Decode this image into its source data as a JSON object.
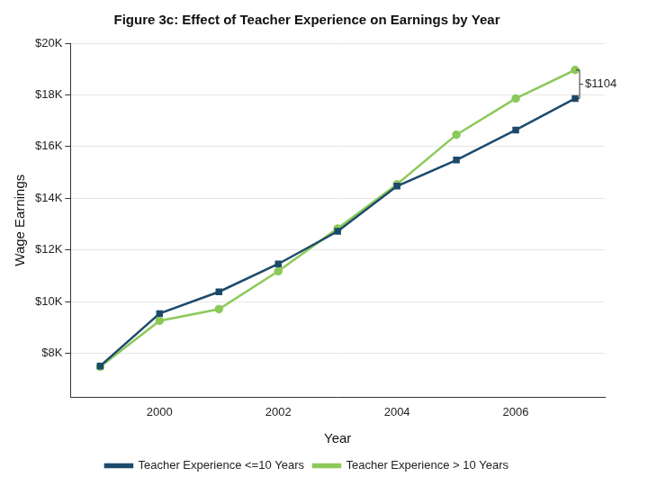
{
  "chart_data": {
    "type": "line",
    "title": "Figure 3c: Effect of Teacher Experience on Earnings by Year",
    "x_label": "Year",
    "y_label": "Wage Earnings",
    "x": [
      1999,
      2000,
      2001,
      2002,
      2003,
      2004,
      2005,
      2006,
      2007
    ],
    "series": [
      {
        "name": "Teacher Experience <=10 Years",
        "color": "#1d4a6b",
        "marker": "square",
        "line_style": "solid",
        "values": [
          7510,
          9540,
          10380,
          11460,
          12720,
          14470,
          15480,
          16640,
          17860
        ]
      },
      {
        "name": "Teacher Experience > 10 Years",
        "color": "#8dc95a",
        "marker": "circle",
        "line_style": "solid",
        "values": [
          7480,
          9260,
          9710,
          11180,
          12830,
          14540,
          16460,
          17860,
          18964
        ]
      }
    ],
    "xlim": [
      1998.5,
      2007.5
    ],
    "xticks": [
      2000,
      2002,
      2004,
      2006
    ],
    "ylim": [
      6300,
      20000
    ],
    "yticks": [
      {
        "value": 8000,
        "label": "$8K"
      },
      {
        "value": 10000,
        "label": "$10K"
      },
      {
        "value": 12000,
        "label": "$12K"
      },
      {
        "value": 14000,
        "label": "$14K"
      },
      {
        "value": 16000,
        "label": "$16K"
      },
      {
        "value": 18000,
        "label": "$18K"
      },
      {
        "value": 20000,
        "label": "$20K"
      }
    ],
    "grid": "y",
    "legend": "bottom",
    "annotation": "$1104"
  }
}
